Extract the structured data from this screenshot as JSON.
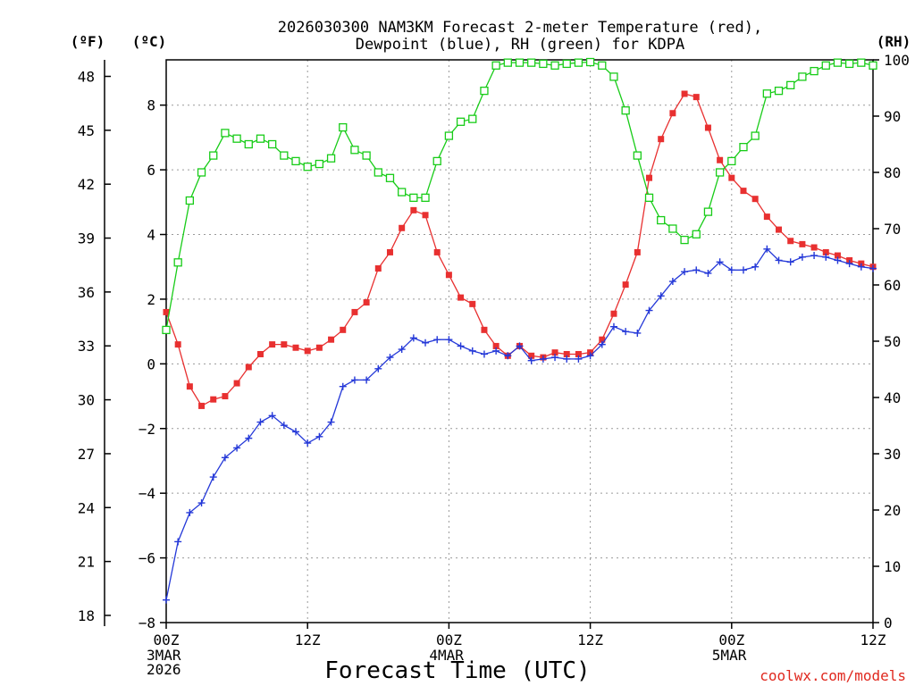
{
  "chart_data": {
    "type": "line",
    "title": [
      "2026030300 NAM3KM Forecast 2-meter Temperature (red),",
      "Dewpoint (blue), RH (green) for KDPA"
    ],
    "xlabel": "Forecast Time (UTC)",
    "credit": "coolwx.com/models",
    "units": {
      "fahrenheit": "(ºF)",
      "celsius": "(ºC)",
      "rh": "(RH)"
    },
    "x_hours_range": [
      0,
      60
    ],
    "x_ticks": [
      {
        "hour": 0,
        "label": "00Z",
        "sub": [
          "3MAR",
          "2026"
        ]
      },
      {
        "hour": 12,
        "label": "12Z",
        "sub": []
      },
      {
        "hour": 24,
        "label": "00Z",
        "sub": [
          "4MAR"
        ]
      },
      {
        "hour": 36,
        "label": "12Z",
        "sub": []
      },
      {
        "hour": 48,
        "label": "00Z",
        "sub": [
          "5MAR"
        ]
      },
      {
        "hour": 60,
        "label": "12Z",
        "sub": []
      }
    ],
    "ylim_celsius": [
      -8,
      9.4
    ],
    "ylim_rh": [
      0,
      100
    ],
    "y_ticks_celsius": [
      -8,
      -6,
      -4,
      -2,
      0,
      2,
      4,
      6,
      8
    ],
    "y_ticks_fahrenheit": [
      18,
      21,
      24,
      27,
      30,
      33,
      36,
      39,
      42,
      45,
      48
    ],
    "y_ticks_rh": [
      0,
      10,
      20,
      30,
      40,
      50,
      60,
      70,
      80,
      90,
      100
    ],
    "grid": true,
    "colors": {
      "temperature": "#e83030",
      "dewpoint": "#2438d8",
      "rh": "#18cc18",
      "credit": "#e0281e"
    },
    "series": [
      {
        "name": "Temperature (°C)",
        "axis": "celsius",
        "color": "#e83030",
        "marker": "filled-square",
        "values": [
          1.6,
          0.6,
          -0.7,
          -1.3,
          -1.1,
          -1.0,
          -0.6,
          -0.1,
          0.3,
          0.6,
          0.6,
          0.5,
          0.4,
          0.5,
          0.75,
          1.05,
          1.6,
          1.9,
          2.95,
          3.45,
          4.2,
          4.75,
          4.6,
          3.45,
          2.75,
          2.05,
          1.85,
          1.05,
          0.55,
          0.25,
          0.55,
          0.25,
          0.2,
          0.35,
          0.3,
          0.3,
          0.35,
          0.75,
          1.55,
          2.45,
          3.45,
          5.75,
          6.95,
          7.75,
          8.35,
          8.25,
          7.3,
          6.3,
          5.75,
          5.35,
          5.1,
          4.55,
          4.15,
          3.8,
          3.7,
          3.6,
          3.45,
          3.35,
          3.2,
          3.1,
          3.0
        ]
      },
      {
        "name": "Dewpoint (°C)",
        "axis": "celsius",
        "color": "#2438d8",
        "marker": "plus",
        "values": [
          -7.3,
          -5.5,
          -4.6,
          -4.3,
          -3.5,
          -2.9,
          -2.6,
          -2.3,
          -1.8,
          -1.6,
          -1.9,
          -2.1,
          -2.45,
          -2.25,
          -1.8,
          -0.7,
          -0.5,
          -0.5,
          -0.15,
          0.2,
          0.45,
          0.8,
          0.65,
          0.75,
          0.75,
          0.55,
          0.4,
          0.3,
          0.4,
          0.25,
          0.55,
          0.1,
          0.15,
          0.2,
          0.15,
          0.15,
          0.25,
          0.6,
          1.15,
          1.0,
          0.95,
          1.65,
          2.1,
          2.55,
          2.85,
          2.9,
          2.8,
          3.15,
          2.9,
          2.9,
          3.0,
          3.55,
          3.2,
          3.15,
          3.3,
          3.35,
          3.3,
          3.2,
          3.1,
          3.0,
          2.95
        ]
      },
      {
        "name": "RH (%)",
        "axis": "rh",
        "color": "#18cc18",
        "marker": "open-square",
        "values": [
          52,
          64,
          75,
          80,
          83,
          87,
          86,
          85,
          86,
          85,
          83,
          82,
          81,
          81.5,
          82.5,
          88,
          84,
          83,
          80,
          79,
          76.5,
          75.5,
          75.5,
          82,
          86.5,
          89,
          89.5,
          94.5,
          99,
          99.5,
          99.5,
          99.5,
          99.3,
          99,
          99.3,
          99.5,
          99.6,
          99,
          97,
          91,
          83,
          75.5,
          71.5,
          70,
          68,
          69,
          73,
          80,
          82,
          84.5,
          86.5,
          94,
          94.5,
          95.5,
          97,
          98,
          99,
          99.5,
          99.3,
          99.5,
          99
        ]
      }
    ]
  }
}
